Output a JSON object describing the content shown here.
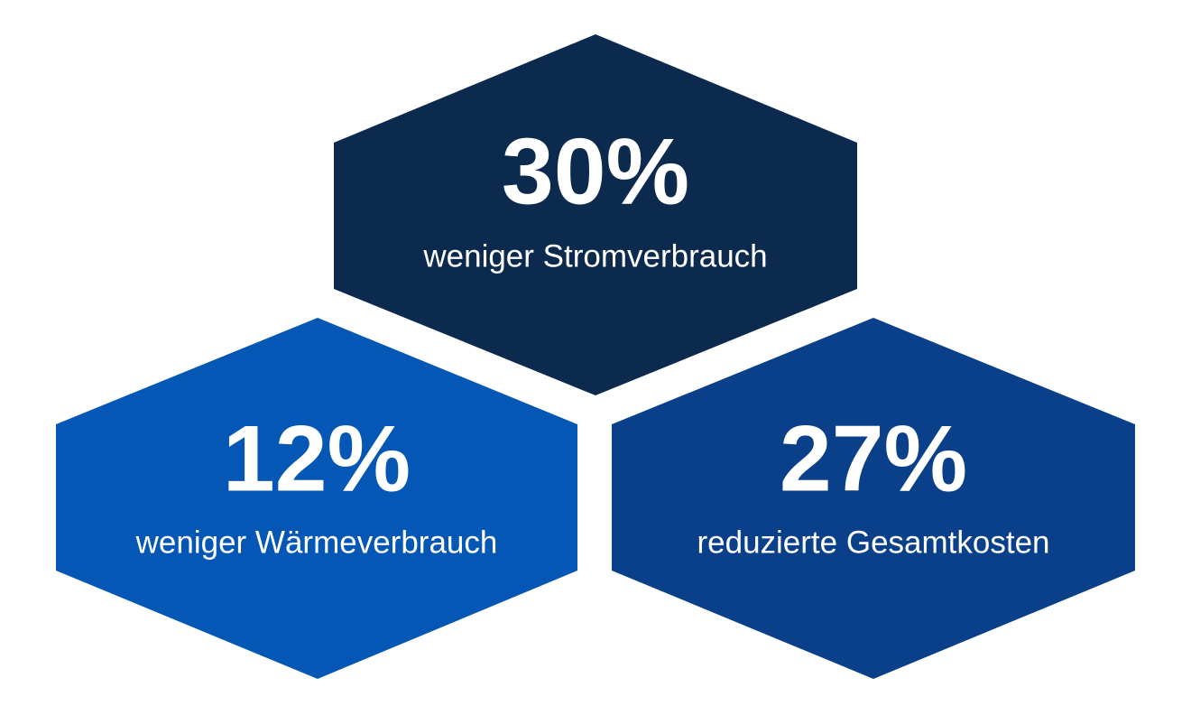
{
  "items": [
    {
      "value": "30%",
      "label": "weniger Stromverbrauch"
    },
    {
      "value": "12%",
      "label": "weniger Wärmeverbrauch"
    },
    {
      "value": "27%",
      "label": "reduzierte Gesamtkosten"
    }
  ]
}
